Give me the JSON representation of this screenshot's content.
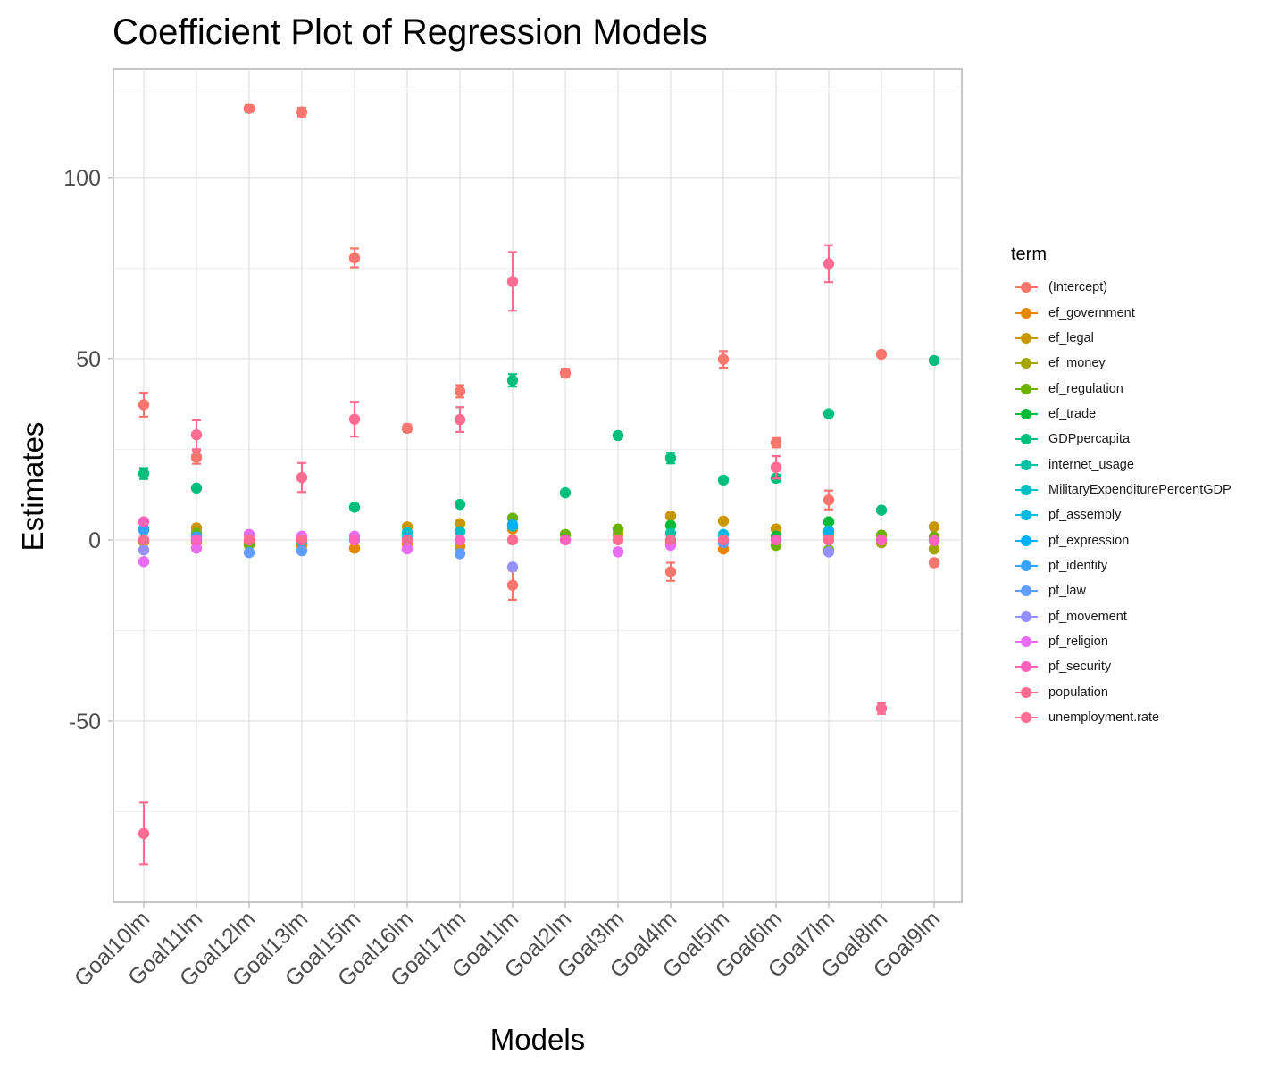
{
  "chart_data": {
    "type": "scatter",
    "title": "Coefficient Plot of Regression Models",
    "xlabel": "Models",
    "ylabel": "Estimates",
    "ylim": [
      -100,
      130
    ],
    "yticks": [
      -50,
      0,
      50,
      100
    ],
    "ytick_labels": [
      "-50",
      "0",
      "50",
      "100"
    ],
    "grid": true,
    "legend_title": "term",
    "legend_position": "right",
    "categories": [
      "Goal10lm",
      "Goal11lm",
      "Goal12lm",
      "Goal13lm",
      "Goal15lm",
      "Goal16lm",
      "Goal17lm",
      "Goal1lm",
      "Goal2lm",
      "Goal3lm",
      "Goal4lm",
      "Goal5lm",
      "Goal6lm",
      "Goal7lm",
      "Goal8lm",
      "Goal9lm"
    ],
    "series": [
      {
        "name": "(Intercept)",
        "color": "#F8766D",
        "points": [
          {
            "x": "Goal10lm",
            "y": 37.3,
            "lo": 34,
            "hi": 40.6
          },
          {
            "x": "Goal11lm",
            "y": 22.8,
            "lo": 21,
            "hi": 24.6
          },
          {
            "x": "Goal12lm",
            "y": 119,
            "lo": 118,
            "hi": 120
          },
          {
            "x": "Goal13lm",
            "y": 118,
            "lo": 116.8,
            "hi": 119.2
          },
          {
            "x": "Goal15lm",
            "y": 77.8,
            "lo": 75.2,
            "hi": 80.4
          },
          {
            "x": "Goal16lm",
            "y": 30.8,
            "lo": 29.8,
            "hi": 31.8
          },
          {
            "x": "Goal17lm",
            "y": 41,
            "lo": 39.3,
            "hi": 42.7
          },
          {
            "x": "Goal1lm",
            "y": -12.5,
            "lo": -16.5,
            "hi": -8.5
          },
          {
            "x": "Goal2lm",
            "y": 46,
            "lo": 44.8,
            "hi": 47.2
          },
          {
            "x": "Goal4lm",
            "y": -8.8,
            "lo": -11.3,
            "hi": -6.3
          },
          {
            "x": "Goal5lm",
            "y": 49.8,
            "lo": 47.5,
            "hi": 52.1
          },
          {
            "x": "Goal6lm",
            "y": 26.8,
            "lo": 25.5,
            "hi": 28.1
          },
          {
            "x": "Goal7lm",
            "y": 11,
            "lo": 8.4,
            "hi": 13.6
          },
          {
            "x": "Goal8lm",
            "y": 51.2,
            "lo": 50.5,
            "hi": 51.9
          },
          {
            "x": "Goal9lm",
            "y": -6.3,
            "lo": -7.3,
            "hi": -5.3
          }
        ]
      },
      {
        "name": "ef_government",
        "color": "#E58700",
        "points": [
          {
            "x": "Goal11lm",
            "y": -0.5
          },
          {
            "x": "Goal13lm",
            "y": -1.5
          },
          {
            "x": "Goal15lm",
            "y": -2.3
          },
          {
            "x": "Goal16lm",
            "y": -1.2
          },
          {
            "x": "Goal17lm",
            "y": -1.8
          },
          {
            "x": "Goal1lm",
            "y": 3
          },
          {
            "x": "Goal4lm",
            "y": -0.5
          },
          {
            "x": "Goal5lm",
            "y": -2.5
          },
          {
            "x": "Goal7lm",
            "y": 1.5
          }
        ]
      },
      {
        "name": "ef_legal",
        "color": "#C99800",
        "points": [
          {
            "x": "Goal11lm",
            "y": 3.3
          },
          {
            "x": "Goal16lm",
            "y": 3.6
          },
          {
            "x": "Goal17lm",
            "y": 4.5
          },
          {
            "x": "Goal4lm",
            "y": 6.6
          },
          {
            "x": "Goal5lm",
            "y": 5.2
          },
          {
            "x": "Goal6lm",
            "y": 3
          },
          {
            "x": "Goal9lm",
            "y": 3.6
          }
        ]
      },
      {
        "name": "ef_money",
        "color": "#A3A500",
        "points": [
          {
            "x": "Goal10lm",
            "y": -0.5
          },
          {
            "x": "Goal12lm",
            "y": -0.8
          },
          {
            "x": "Goal3lm",
            "y": 1.5
          },
          {
            "x": "Goal8lm",
            "y": -0.8
          },
          {
            "x": "Goal9lm",
            "y": -2.5
          }
        ]
      },
      {
        "name": "ef_regulation",
        "color": "#6BB100",
        "points": [
          {
            "x": "Goal11lm",
            "y": 1.8
          },
          {
            "x": "Goal12lm",
            "y": -1.3
          },
          {
            "x": "Goal1lm",
            "y": 6
          },
          {
            "x": "Goal2lm",
            "y": 1.5
          },
          {
            "x": "Goal3lm",
            "y": 3
          },
          {
            "x": "Goal6lm",
            "y": -1.5
          },
          {
            "x": "Goal7lm",
            "y": -2.8
          },
          {
            "x": "Goal8lm",
            "y": 1.3
          },
          {
            "x": "Goal9lm",
            "y": 0.8
          }
        ]
      },
      {
        "name": "ef_trade",
        "color": "#00BA38",
        "points": [
          {
            "x": "Goal4lm",
            "y": 4
          },
          {
            "x": "Goal7lm",
            "y": 5
          },
          {
            "x": "Goal6lm",
            "y": 1
          }
        ]
      },
      {
        "name": "GDPpercapita",
        "color": "#00BF7D",
        "points": [
          {
            "x": "Goal10lm",
            "y": 18.3,
            "lo": 16.8,
            "hi": 19.8
          },
          {
            "x": "Goal11lm",
            "y": 14.3,
            "lo": 13.8,
            "hi": 14.8
          },
          {
            "x": "Goal15lm",
            "y": 9,
            "lo": 8.2,
            "hi": 9.8
          },
          {
            "x": "Goal17lm",
            "y": 9.8,
            "lo": 9.2,
            "hi": 10.4
          },
          {
            "x": "Goal1lm",
            "y": 44,
            "lo": 42.3,
            "hi": 45.7
          },
          {
            "x": "Goal2lm",
            "y": 13,
            "lo": 12.4,
            "hi": 13.6
          },
          {
            "x": "Goal3lm",
            "y": 28.8,
            "lo": 27.9,
            "hi": 29.7
          },
          {
            "x": "Goal4lm",
            "y": 22.6,
            "lo": 21.1,
            "hi": 24.1
          },
          {
            "x": "Goal5lm",
            "y": 16.5,
            "lo": 15.7,
            "hi": 17.3
          },
          {
            "x": "Goal6lm",
            "y": 17,
            "lo": 16.1,
            "hi": 17.9
          },
          {
            "x": "Goal7lm",
            "y": 34.8,
            "lo": 34.1,
            "hi": 35.5
          },
          {
            "x": "Goal8lm",
            "y": 8.2,
            "lo": 7.6,
            "hi": 8.8
          },
          {
            "x": "Goal9lm",
            "y": 49.5,
            "lo": 48.9,
            "hi": 50.1
          }
        ]
      },
      {
        "name": "internet_usage",
        "color": "#00C1A3",
        "points": [
          {
            "x": "Goal13lm",
            "y": -0.5
          },
          {
            "x": "Goal4lm",
            "y": 1.8
          },
          {
            "x": "Goal7lm",
            "y": 2.5
          }
        ]
      },
      {
        "name": "MilitaryExpenditurePercentGDP",
        "color": "#00BFC4",
        "points": [
          {
            "x": "Goal16lm",
            "y": 2
          },
          {
            "x": "Goal17lm",
            "y": 2.3
          },
          {
            "x": "Goal1lm",
            "y": 3.8
          }
        ]
      },
      {
        "name": "pf_assembly",
        "color": "#00BAE0",
        "points": [
          {
            "x": "Goal10lm",
            "y": 3
          },
          {
            "x": "Goal5lm",
            "y": 1.5
          }
        ]
      },
      {
        "name": "pf_expression",
        "color": "#00B0F6",
        "points": [
          {
            "x": "Goal16lm",
            "y": 0.5
          },
          {
            "x": "Goal1lm",
            "y": 4.2
          },
          {
            "x": "Goal7lm",
            "y": 2.2
          }
        ]
      },
      {
        "name": "pf_identity",
        "color": "#35A2FF",
        "points": [
          {
            "x": "Goal10lm",
            "y": 2.7
          },
          {
            "x": "Goal11lm",
            "y": 0.8
          }
        ]
      },
      {
        "name": "pf_law",
        "color": "#619CFF",
        "points": [
          {
            "x": "Goal12lm",
            "y": -3.5
          },
          {
            "x": "Goal13lm",
            "y": -3
          },
          {
            "x": "Goal17lm",
            "y": -3.8
          },
          {
            "x": "Goal5lm",
            "y": -0.8
          }
        ]
      },
      {
        "name": "pf_movement",
        "color": "#9590FF",
        "points": [
          {
            "x": "Goal10lm",
            "y": -2.8
          },
          {
            "x": "Goal1lm",
            "y": -7.5
          },
          {
            "x": "Goal7lm",
            "y": -3.3
          }
        ]
      },
      {
        "name": "pf_religion",
        "color": "#E76BF3",
        "points": [
          {
            "x": "Goal10lm",
            "y": -6
          },
          {
            "x": "Goal11lm",
            "y": -2.3
          },
          {
            "x": "Goal12lm",
            "y": 1.5
          },
          {
            "x": "Goal13lm",
            "y": 1
          },
          {
            "x": "Goal15lm",
            "y": 1
          },
          {
            "x": "Goal16lm",
            "y": -2.5
          },
          {
            "x": "Goal3lm",
            "y": -3.3
          },
          {
            "x": "Goal4lm",
            "y": -1.5
          }
        ]
      },
      {
        "name": "pf_security",
        "color": "#FF62BC",
        "points": [
          {
            "x": "Goal10lm",
            "y": 5
          },
          {
            "x": "Goal11lm",
            "y": 0
          },
          {
            "x": "Goal15lm",
            "y": 0
          },
          {
            "x": "Goal17lm",
            "y": 0
          },
          {
            "x": "Goal2lm",
            "y": 0
          },
          {
            "x": "Goal6lm",
            "y": 0
          },
          {
            "x": "Goal8lm",
            "y": 0
          },
          {
            "x": "Goal9lm",
            "y": -0.2
          }
        ]
      },
      {
        "name": "population",
        "color": "#FF6C91",
        "points": [
          {
            "x": "Goal10lm",
            "y": 0
          },
          {
            "x": "Goal12lm",
            "y": 0
          },
          {
            "x": "Goal13lm",
            "y": 0
          },
          {
            "x": "Goal16lm",
            "y": 0
          },
          {
            "x": "Goal1lm",
            "y": 0
          },
          {
            "x": "Goal3lm",
            "y": 0
          },
          {
            "x": "Goal4lm",
            "y": 0
          },
          {
            "x": "Goal5lm",
            "y": 0
          },
          {
            "x": "Goal7lm",
            "y": 0
          }
        ]
      },
      {
        "name": "unemployment.rate",
        "color": "#FF6C91",
        "points": [
          {
            "x": "Goal10lm",
            "y": -81,
            "lo": -89.5,
            "hi": -72.5
          },
          {
            "x": "Goal11lm",
            "y": 29,
            "lo": 25,
            "hi": 33
          },
          {
            "x": "Goal13lm",
            "y": 17.2,
            "lo": 13.2,
            "hi": 21.2
          },
          {
            "x": "Goal15lm",
            "y": 33.3,
            "lo": 28.5,
            "hi": 38.1
          },
          {
            "x": "Goal17lm",
            "y": 33.2,
            "lo": 29.8,
            "hi": 36.6
          },
          {
            "x": "Goal1lm",
            "y": 71.3,
            "lo": 63.2,
            "hi": 79.4
          },
          {
            "x": "Goal6lm",
            "y": 20,
            "lo": 16.9,
            "hi": 23.1
          },
          {
            "x": "Goal7lm",
            "y": 76.2,
            "lo": 71.1,
            "hi": 81.3
          },
          {
            "x": "Goal8lm",
            "y": -46.5,
            "lo": -48,
            "hi": -45
          }
        ]
      }
    ]
  }
}
